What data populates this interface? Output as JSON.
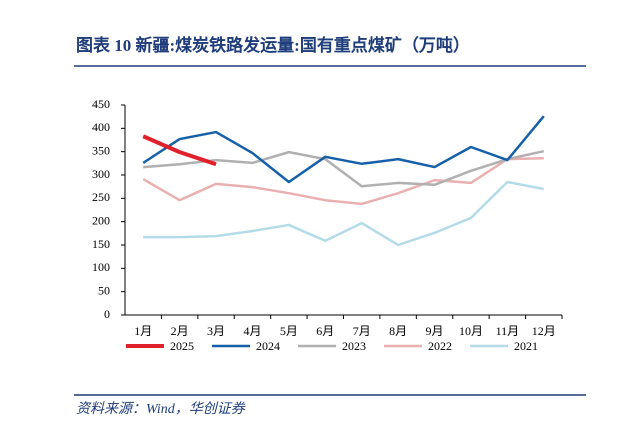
{
  "chart_data": {
    "type": "line",
    "title": "图表 10 新疆:煤炭铁路发运量:国有重点煤矿（万吨）",
    "source": "资料来源：Wind，华创证券",
    "categories": [
      "1月",
      "2月",
      "3月",
      "4月",
      "5月",
      "6月",
      "7月",
      "8月",
      "9月",
      "10月",
      "11月",
      "12月"
    ],
    "ylim": [
      0,
      450
    ],
    "yticks": [
      0,
      50,
      100,
      150,
      200,
      250,
      300,
      350,
      400,
      450
    ],
    "grid": false,
    "legend": "bottom",
    "series": [
      {
        "name": "2025",
        "color": "#e0202a",
        "values": [
          383,
          349,
          323,
          null,
          null,
          null,
          null,
          null,
          null,
          null,
          null,
          null
        ]
      },
      {
        "name": "2024",
        "color": "#1560a8",
        "values": [
          326,
          377,
          392,
          347,
          285,
          339,
          324,
          334,
          317,
          360,
          332,
          426
        ]
      },
      {
        "name": "2023",
        "color": "#b0b0b0",
        "values": [
          317,
          323,
          332,
          326,
          349,
          334,
          276,
          283,
          279,
          309,
          334,
          351
        ]
      },
      {
        "name": "2022",
        "color": "#eab0b0",
        "values": [
          291,
          246,
          281,
          274,
          261,
          246,
          238,
          261,
          289,
          283,
          334,
          336
        ]
      },
      {
        "name": "2021",
        "color": "#b4dce8",
        "values": [
          167,
          167,
          169,
          180,
          193,
          159,
          197,
          150,
          176,
          208,
          285,
          270
        ]
      }
    ]
  }
}
